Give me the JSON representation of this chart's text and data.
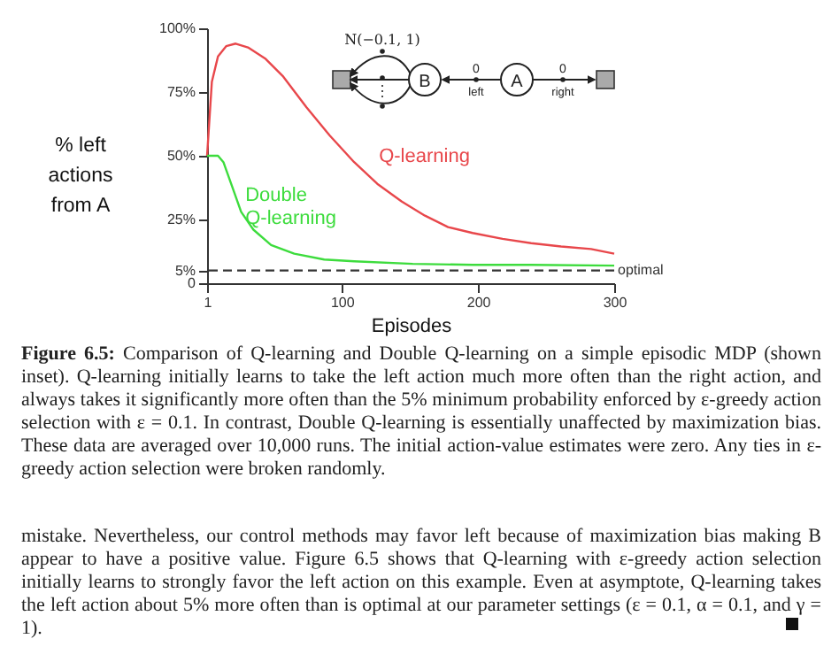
{
  "chart_data": {
    "type": "line",
    "xlabel": "Episodes",
    "ylabel": "% left\nactions\nfrom A",
    "xlim": [
      1,
      300
    ],
    "xticks": [
      1,
      100,
      200,
      300
    ],
    "ylim": [
      0,
      100
    ],
    "yticks": [
      0,
      {
        "value": 5,
        "label": "5%"
      },
      {
        "value": 25,
        "label": "25%"
      },
      {
        "value": 50,
        "label": "50%"
      },
      {
        "value": 75,
        "label": "75%"
      },
      {
        "value": 100,
        "label": "100%"
      }
    ],
    "grid": false,
    "series": [
      {
        "name": "Q-learning",
        "color": "#e8474b",
        "x": [
          1,
          4.5,
          9,
          15,
          22,
          31,
          44,
          57,
          74,
          91,
          109,
          126,
          144,
          161,
          178,
          196,
          218,
          239,
          261,
          283,
          300
        ],
        "values": [
          50,
          79,
          89,
          93,
          94,
          92.5,
          88,
          81,
          69,
          58,
          47.5,
          39,
          32,
          26.5,
          22,
          19.7,
          17.4,
          15.7,
          14.4,
          13.4,
          11.6
        ]
      },
      {
        "name": "Double\nQ-learning",
        "color": "#3ddc3d",
        "x": [
          1,
          9,
          13,
          20,
          26,
          35,
          48,
          65,
          87,
          109,
          152,
          196,
          239,
          300
        ],
        "values": [
          50,
          50,
          47.5,
          37,
          28,
          21,
          15,
          11.6,
          9.3,
          8.6,
          7.6,
          7.2,
          7.2,
          6.9
        ]
      }
    ],
    "ref_lines": [
      {
        "axis": "y",
        "value": 5,
        "label": "optimal",
        "color": "#333333",
        "line_style": "dashed"
      }
    ],
    "annotations": [
      "N(−0.1, 1)",
      "B",
      "A",
      "0",
      "left",
      "0",
      "right",
      "Figure 6.5:",
      "Comparison of Q-learning and Double Q-learning on a simple episodic MDP (shown inset). Q-learning initially learns to take the left action much more often than the right action, and always takes it significantly more often than the 5% minimum probability enforced by ε-greedy action selection with ε = 0.1. In contrast, Double Q-learning is essentially unaffected by maximization bias. These data are averaged over 10,000 runs. The initial action-value estimates were zero. Any ties in ε-greedy action selection were broken randomly.",
      "mistake. Nevertheless, our control methods may favor left because of maximization bias making B appear to have a positive value. Figure 6.5 shows that Q-learning with ε-greedy action selection initially learns to strongly favor the left action on this example. Even at asymptote, Q-learning takes the left action about 5% more often than is optimal at our parameter settings (ε = 0.1, α = 0.1, and γ = 1)."
    ]
  }
}
